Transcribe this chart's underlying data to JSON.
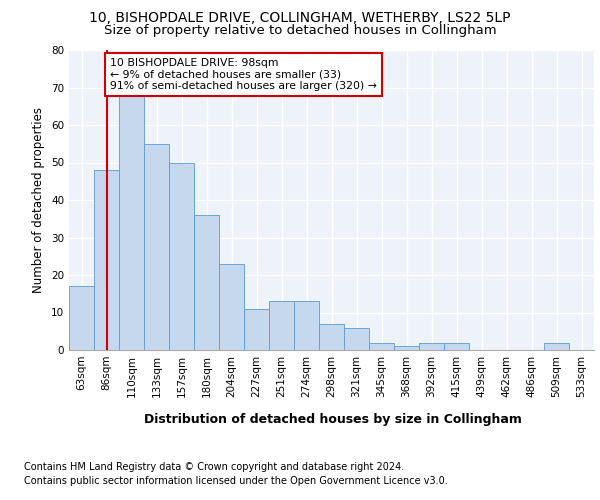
{
  "title": "10, BISHOPDALE DRIVE, COLLINGHAM, WETHERBY, LS22 5LP",
  "subtitle": "Size of property relative to detached houses in Collingham",
  "xlabel": "Distribution of detached houses by size in Collingham",
  "ylabel": "Number of detached properties",
  "bar_color": "#c5d8ed",
  "bar_edge_color": "#5b9bd5",
  "categories": [
    "63sqm",
    "86sqm",
    "110sqm",
    "133sqm",
    "157sqm",
    "180sqm",
    "204sqm",
    "227sqm",
    "251sqm",
    "274sqm",
    "298sqm",
    "321sqm",
    "345sqm",
    "368sqm",
    "392sqm",
    "415sqm",
    "439sqm",
    "462sqm",
    "486sqm",
    "509sqm",
    "533sqm"
  ],
  "values": [
    17,
    48,
    68,
    55,
    50,
    36,
    23,
    11,
    13,
    13,
    7,
    6,
    2,
    1,
    2,
    2,
    0,
    0,
    0,
    2,
    0
  ],
  "ylim": [
    0,
    80
  ],
  "yticks": [
    0,
    10,
    20,
    30,
    40,
    50,
    60,
    70,
    80
  ],
  "property_line_x": 1.0,
  "annotation_line1": "10 BISHOPDALE DRIVE: 98sqm",
  "annotation_line2": "← 9% of detached houses are smaller (33)",
  "annotation_line3": "91% of semi-detached houses are larger (320) →",
  "annotation_box_color": "#ffffff",
  "annotation_box_edge": "#cc0000",
  "property_line_color": "#cc0000",
  "footnote1": "Contains HM Land Registry data © Crown copyright and database right 2024.",
  "footnote2": "Contains public sector information licensed under the Open Government Licence v3.0.",
  "background_color": "#eef2f9",
  "grid_color": "#ffffff",
  "title_fontsize": 10,
  "subtitle_fontsize": 9.5,
  "axis_label_fontsize": 8.5,
  "tick_fontsize": 7.5,
  "footnote_fontsize": 7
}
